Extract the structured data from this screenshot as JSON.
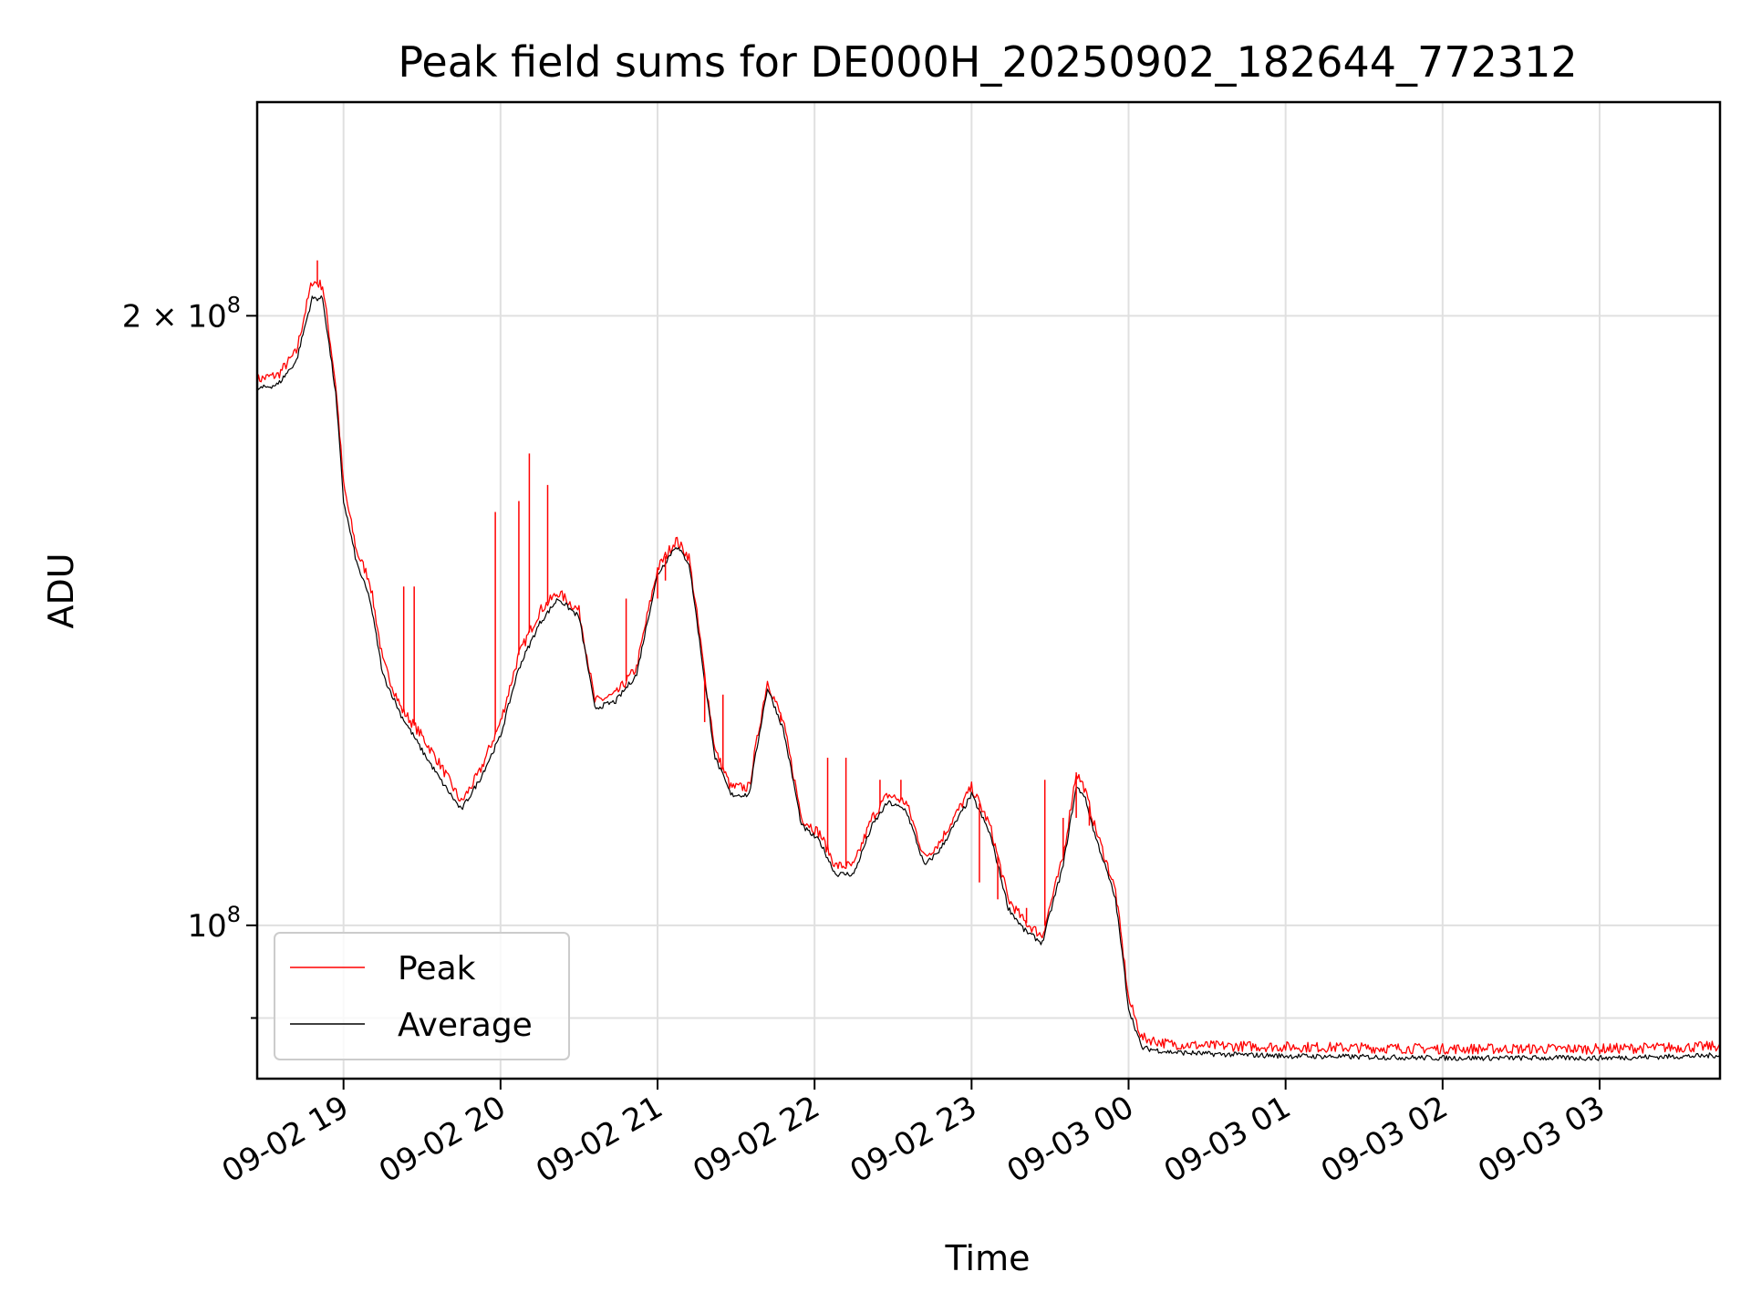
{
  "chart_data": {
    "type": "line",
    "title": "Peak field sums for DE000H_20250902_182644_772312",
    "xlabel": "Time",
    "ylabel": "ADU",
    "yscale": "log",
    "grid": true,
    "legend_position": "lower-left",
    "x_tick_labels": [
      "09-02 19",
      "09-02 20",
      "09-02 21",
      "09-02 22",
      "09-02 23",
      "09-03 00",
      "09-03 01",
      "09-03 02",
      "09-03 03"
    ],
    "y_tick_labels": [
      {
        "value": 200000000,
        "mantissa": "2 × 10",
        "exp": "8"
      },
      {
        "value": 100000000,
        "mantissa": "10",
        "exp": "8"
      }
    ],
    "xlim": [
      "2025-09-02 18:27",
      "2025-09-03 03:46"
    ],
    "ylim": [
      84000000,
      255000000
    ],
    "series": [
      {
        "name": "Peak",
        "color": "#ff0000",
        "points": [
          [
            "2025-09-02 18:27",
            186000000
          ],
          [
            "2025-09-02 18:35",
            187000000
          ],
          [
            "2025-09-02 18:42",
            192000000
          ],
          [
            "2025-09-02 18:48",
            208000000
          ],
          [
            "2025-09-02 18:52",
            207000000
          ],
          [
            "2025-09-02 18:57",
            185000000
          ],
          [
            "2025-09-02 19:00",
            165000000
          ],
          [
            "2025-09-02 19:05",
            153000000
          ],
          [
            "2025-09-02 19:10",
            148000000
          ],
          [
            "2025-09-02 19:15",
            135000000
          ],
          [
            "2025-09-02 19:22",
            128000000
          ],
          [
            "2025-09-02 19:30",
            124000000
          ],
          [
            "2025-09-02 19:37",
            120000000
          ],
          [
            "2025-09-02 19:45",
            115000000
          ],
          [
            "2025-09-02 19:52",
            119000000
          ],
          [
            "2025-09-02 20:00",
            126000000
          ],
          [
            "2025-09-02 20:07",
            136000000
          ],
          [
            "2025-09-02 20:15",
            143000000
          ],
          [
            "2025-09-02 20:22",
            146000000
          ],
          [
            "2025-09-02 20:30",
            143000000
          ],
          [
            "2025-09-02 20:36",
            129000000
          ],
          [
            "2025-09-02 20:44",
            130000000
          ],
          [
            "2025-09-02 20:52",
            134000000
          ],
          [
            "2025-09-02 21:00",
            150000000
          ],
          [
            "2025-09-02 21:07",
            155000000
          ],
          [
            "2025-09-02 21:12",
            152000000
          ],
          [
            "2025-09-02 21:18",
            133000000
          ],
          [
            "2025-09-02 21:22",
            122000000
          ],
          [
            "2025-09-02 21:28",
            117000000
          ],
          [
            "2025-09-02 21:35",
            117000000
          ],
          [
            "2025-09-02 21:42",
            132000000
          ],
          [
            "2025-09-02 21:48",
            126000000
          ],
          [
            "2025-09-02 21:55",
            113000000
          ],
          [
            "2025-09-02 22:02",
            111000000
          ],
          [
            "2025-09-02 22:08",
            107000000
          ],
          [
            "2025-09-02 22:15",
            107000000
          ],
          [
            "2025-09-02 22:22",
            113000000
          ],
          [
            "2025-09-02 22:28",
            116000000
          ],
          [
            "2025-09-02 22:35",
            115000000
          ],
          [
            "2025-09-02 22:42",
            108000000
          ],
          [
            "2025-09-02 22:48",
            110000000
          ],
          [
            "2025-09-02 22:55",
            114000000
          ],
          [
            "2025-09-02 23:00",
            117000000
          ],
          [
            "2025-09-02 23:07",
            112000000
          ],
          [
            "2025-09-02 23:14",
            103000000
          ],
          [
            "2025-09-02 23:20",
            100500000
          ],
          [
            "2025-09-02 23:27",
            98800000
          ],
          [
            "2025-09-02 23:35",
            108000000
          ],
          [
            "2025-09-02 23:40",
            119000000
          ],
          [
            "2025-09-02 23:43",
            117000000
          ],
          [
            "2025-09-02 23:47",
            112000000
          ],
          [
            "2025-09-02 23:55",
            104000000
          ],
          [
            "2025-09-03 00:00",
            92000000
          ],
          [
            "2025-09-03 00:05",
            88000000
          ],
          [
            "2025-09-03 00:15",
            87400000
          ],
          [
            "2025-09-03 00:30",
            87200000
          ],
          [
            "2025-09-03 01:00",
            87100000
          ],
          [
            "2025-09-03 01:30",
            87000000
          ],
          [
            "2025-09-03 02:00",
            86900000
          ],
          [
            "2025-09-03 02:30",
            86900000
          ],
          [
            "2025-09-03 03:00",
            86900000
          ],
          [
            "2025-09-03 03:20",
            87000000
          ],
          [
            "2025-09-03 03:40",
            87100000
          ],
          [
            "2025-09-03 03:46",
            87200000
          ]
        ],
        "spikes": [
          [
            "2025-09-02 18:50",
            213000000
          ],
          [
            "2025-09-02 19:23",
            147000000
          ],
          [
            "2025-09-02 19:27",
            147000000
          ],
          [
            "2025-09-02 19:58",
            160000000
          ],
          [
            "2025-09-02 20:07",
            162000000
          ],
          [
            "2025-09-02 20:11",
            171000000
          ],
          [
            "2025-09-02 20:18",
            165000000
          ],
          [
            "2025-09-02 20:48",
            145000000
          ],
          [
            "2025-09-02 21:00",
            145000000
          ],
          [
            "2025-09-02 21:03",
            148000000
          ],
          [
            "2025-09-02 21:18",
            126000000
          ],
          [
            "2025-09-02 21:25",
            130000000
          ],
          [
            "2025-09-02 21:47",
            126000000
          ],
          [
            "2025-09-02 22:05",
            121000000
          ],
          [
            "2025-09-02 22:12",
            121000000
          ],
          [
            "2025-09-02 22:25",
            118000000
          ],
          [
            "2025-09-02 22:33",
            118000000
          ],
          [
            "2025-09-02 23:03",
            105000000
          ],
          [
            "2025-09-02 23:10",
            103000000
          ],
          [
            "2025-09-02 23:21",
            102000000
          ],
          [
            "2025-09-02 23:28",
            118000000
          ],
          [
            "2025-09-02 23:35",
            113000000
          ],
          [
            "2025-09-02 23:40",
            113000000
          ],
          [
            "2025-09-02 23:45",
            112000000
          ]
        ]
      },
      {
        "name": "Average",
        "color": "#000000",
        "points": [
          [
            "2025-09-02 18:27",
            184000000
          ],
          [
            "2025-09-02 18:35",
            185000000
          ],
          [
            "2025-09-02 18:42",
            190000000
          ],
          [
            "2025-09-02 18:48",
            204000000
          ],
          [
            "2025-09-02 18:52",
            204000000
          ],
          [
            "2025-09-02 18:57",
            183000000
          ],
          [
            "2025-09-02 19:00",
            162000000
          ],
          [
            "2025-09-02 19:05",
            151000000
          ],
          [
            "2025-09-02 19:10",
            145000000
          ],
          [
            "2025-09-02 19:15",
            133000000
          ],
          [
            "2025-09-02 19:22",
            127000000
          ],
          [
            "2025-09-02 19:30",
            122000000
          ],
          [
            "2025-09-02 19:37",
            118000000
          ],
          [
            "2025-09-02 19:45",
            114000000
          ],
          [
            "2025-09-02 19:52",
            118000000
          ],
          [
            "2025-09-02 20:00",
            124000000
          ],
          [
            "2025-09-02 20:07",
            134000000
          ],
          [
            "2025-09-02 20:15",
            141000000
          ],
          [
            "2025-09-02 20:22",
            145000000
          ],
          [
            "2025-09-02 20:30",
            142000000
          ],
          [
            "2025-09-02 20:36",
            128000000
          ],
          [
            "2025-09-02 20:44",
            129000000
          ],
          [
            "2025-09-02 20:52",
            133000000
          ],
          [
            "2025-09-02 21:00",
            149000000
          ],
          [
            "2025-09-02 21:07",
            154000000
          ],
          [
            "2025-09-02 21:12",
            151000000
          ],
          [
            "2025-09-02 21:18",
            132000000
          ],
          [
            "2025-09-02 21:22",
            121000000
          ],
          [
            "2025-09-02 21:28",
            116000000
          ],
          [
            "2025-09-02 21:35",
            116000000
          ],
          [
            "2025-09-02 21:42",
            131000000
          ],
          [
            "2025-09-02 21:48",
            125000000
          ],
          [
            "2025-09-02 21:55",
            112000000
          ],
          [
            "2025-09-02 22:02",
            110000000
          ],
          [
            "2025-09-02 22:08",
            106000000
          ],
          [
            "2025-09-02 22:15",
            106000000
          ],
          [
            "2025-09-02 22:22",
            112000000
          ],
          [
            "2025-09-02 22:28",
            115000000
          ],
          [
            "2025-09-02 22:35",
            114000000
          ],
          [
            "2025-09-02 22:42",
            107000000
          ],
          [
            "2025-09-02 22:48",
            109000000
          ],
          [
            "2025-09-02 22:55",
            113000000
          ],
          [
            "2025-09-02 23:00",
            116000000
          ],
          [
            "2025-09-02 23:07",
            111000000
          ],
          [
            "2025-09-02 23:14",
            102000000
          ],
          [
            "2025-09-02 23:20",
            99500000
          ],
          [
            "2025-09-02 23:27",
            98000000
          ],
          [
            "2025-09-02 23:35",
            107000000
          ],
          [
            "2025-09-02 23:40",
            117000000
          ],
          [
            "2025-09-02 23:43",
            116000000
          ],
          [
            "2025-09-02 23:47",
            111000000
          ],
          [
            "2025-09-02 23:55",
            103000000
          ],
          [
            "2025-09-03 00:00",
            91000000
          ],
          [
            "2025-09-03 00:05",
            87000000
          ],
          [
            "2025-09-03 00:15",
            86600000
          ],
          [
            "2025-09-03 00:30",
            86400000
          ],
          [
            "2025-09-03 01:00",
            86200000
          ],
          [
            "2025-09-03 01:30",
            86100000
          ],
          [
            "2025-09-03 02:00",
            86000000
          ],
          [
            "2025-09-03 02:30",
            86000000
          ],
          [
            "2025-09-03 03:00",
            86000000
          ],
          [
            "2025-09-03 03:20",
            86100000
          ],
          [
            "2025-09-03 03:40",
            86200000
          ],
          [
            "2025-09-03 03:46",
            86300000
          ]
        ]
      }
    ]
  }
}
